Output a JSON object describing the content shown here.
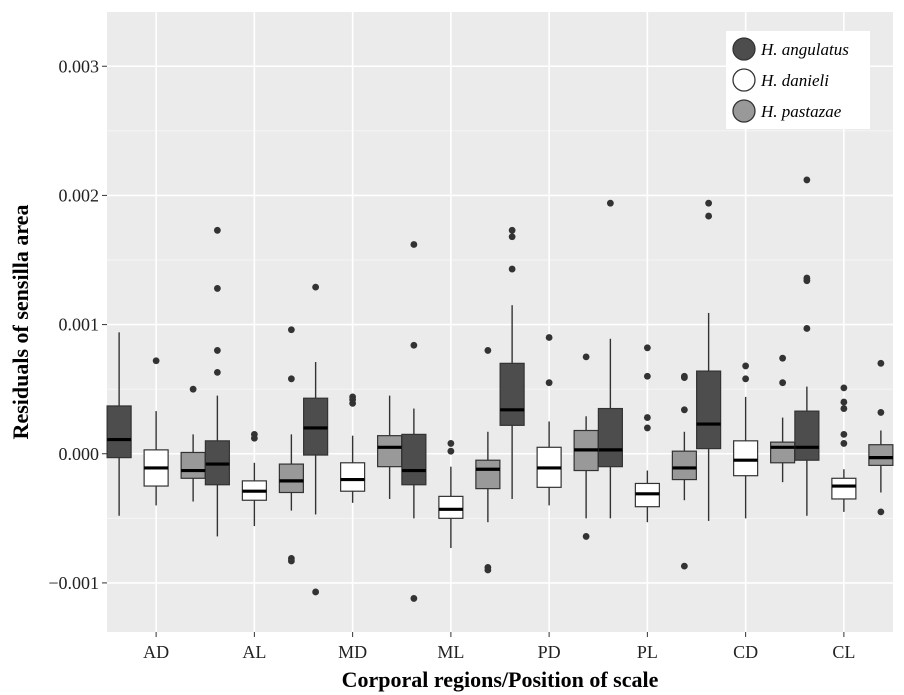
{
  "chart_data": {
    "type": "boxplot",
    "xlabel": "Corporal regions/Position of scale",
    "ylabel": "Residuals of sensilla area",
    "categories": [
      "AD",
      "AL",
      "MD",
      "ML",
      "PD",
      "PL",
      "CD",
      "CL"
    ],
    "yticks": [
      "−0.001",
      "0.000",
      "0.001",
      "0.002",
      "0.003"
    ],
    "ytick_values": [
      -0.001,
      0.0,
      0.001,
      0.002,
      0.003
    ],
    "ylim": [
      -0.00138,
      0.00342
    ],
    "grid": true,
    "legend_position": "top-right",
    "series": [
      {
        "name": "H. angulatus",
        "color": "#4d4d4d",
        "boxes": [
          {
            "whislo": -0.00048,
            "q1": -3e-05,
            "med": 0.00011,
            "q3": 0.00037,
            "whishi": 0.00094,
            "fliers": []
          },
          {
            "whislo": -0.00064,
            "q1": -0.00024,
            "med": -8e-05,
            "q3": 0.0001,
            "whishi": 0.00045,
            "fliers": [
              0.00063,
              0.0008,
              0.00128,
              0.00173
            ]
          },
          {
            "whislo": -0.00047,
            "q1": -1e-05,
            "med": 0.0002,
            "q3": 0.00043,
            "whishi": 0.00071,
            "fliers": [
              0.00129,
              -0.00107
            ]
          },
          {
            "whislo": -0.0005,
            "q1": -0.00024,
            "med": -0.00013,
            "q3": 0.00015,
            "whishi": 0.00035,
            "fliers": [
              0.00084,
              0.00162,
              -0.00112
            ]
          },
          {
            "whislo": -0.00035,
            "q1": 0.00022,
            "med": 0.00034,
            "q3": 0.0007,
            "whishi": 0.00115,
            "fliers": [
              0.00143,
              0.00168,
              0.00173
            ]
          },
          {
            "whislo": -0.0005,
            "q1": -0.0001,
            "med": 3e-05,
            "q3": 0.00035,
            "whishi": 0.00089,
            "fliers": [
              0.00194
            ]
          },
          {
            "whislo": -0.00052,
            "q1": 4e-05,
            "med": 0.00023,
            "q3": 0.00064,
            "whishi": 0.00109,
            "fliers": [
              0.00184,
              0.00194
            ]
          },
          {
            "whislo": -0.00048,
            "q1": -5e-05,
            "med": 5e-05,
            "q3": 0.00033,
            "whishi": 0.00052,
            "fliers": [
              0.00097,
              0.00134,
              0.00136,
              0.00212
            ]
          }
        ]
      },
      {
        "name": "H. danieli",
        "color": "#ffffff",
        "boxes": [
          {
            "whislo": -0.0004,
            "q1": -0.00025,
            "med": -0.00011,
            "q3": 3e-05,
            "whishi": 0.00033,
            "fliers": [
              0.00072
            ]
          },
          {
            "whislo": -0.00056,
            "q1": -0.00036,
            "med": -0.00029,
            "q3": -0.00021,
            "whishi": -7e-05,
            "fliers": [
              0.00012,
              0.00015
            ]
          },
          {
            "whislo": -0.00038,
            "q1": -0.00029,
            "med": -0.0002,
            "q3": -7e-05,
            "whishi": 0.00014,
            "fliers": [
              0.00039,
              0.00042,
              0.00044
            ]
          },
          {
            "whislo": -0.00073,
            "q1": -0.0005,
            "med": -0.00043,
            "q3": -0.00033,
            "whishi": -0.0001,
            "fliers": [
              2e-05,
              8e-05
            ]
          },
          {
            "whislo": -0.0004,
            "q1": -0.00026,
            "med": -0.00011,
            "q3": 5e-05,
            "whishi": 0.00025,
            "fliers": [
              0.00055,
              0.0009
            ]
          },
          {
            "whislo": -0.00053,
            "q1": -0.00041,
            "med": -0.00031,
            "q3": -0.00023,
            "whishi": -0.00013,
            "fliers": [
              0.0002,
              0.00028,
              0.0006,
              0.00082
            ]
          },
          {
            "whislo": -0.0005,
            "q1": -0.00017,
            "med": -5e-05,
            "q3": 0.0001,
            "whishi": 0.00044,
            "fliers": [
              0.00058,
              0.00068
            ]
          },
          {
            "whislo": -0.00045,
            "q1": -0.00035,
            "med": -0.00025,
            "q3": -0.00019,
            "whishi": -0.00012,
            "fliers": [
              8e-05,
              0.00015,
              0.00035,
              0.0004,
              0.00051
            ]
          }
        ]
      },
      {
        "name": "H. pastazae",
        "color": "#999999",
        "boxes": [
          {
            "whislo": -0.00037,
            "q1": -0.00019,
            "med": -0.00013,
            "q3": 1e-05,
            "whishi": 0.00015,
            "fliers": [
              0.0005
            ]
          },
          {
            "whislo": -0.00044,
            "q1": -0.0003,
            "med": -0.00021,
            "q3": -8e-05,
            "whishi": 0.00015,
            "fliers": [
              0.00058,
              0.00096,
              -0.00081,
              -0.00083
            ]
          },
          {
            "whislo": -0.00035,
            "q1": -0.0001,
            "med": 5e-05,
            "q3": 0.00014,
            "whishi": 0.00045,
            "fliers": []
          },
          {
            "whislo": -0.00053,
            "q1": -0.00027,
            "med": -0.00012,
            "q3": -5e-05,
            "whishi": 0.00017,
            "fliers": [
              0.0008,
              -0.00088,
              -0.0009
            ]
          },
          {
            "whislo": -0.0005,
            "q1": -0.00013,
            "med": 3e-05,
            "q3": 0.00018,
            "whishi": 0.00029,
            "fliers": [
              0.00075,
              -0.00064
            ]
          },
          {
            "whislo": -0.00036,
            "q1": -0.0002,
            "med": -0.00011,
            "q3": 2e-05,
            "whishi": 0.00017,
            "fliers": [
              0.00034,
              0.00059,
              0.0006,
              -0.00087
            ]
          },
          {
            "whislo": -0.00022,
            "q1": -7e-05,
            "med": 5e-05,
            "q3": 9e-05,
            "whishi": 0.00028,
            "fliers": [
              0.00055,
              0.00074
            ]
          },
          {
            "whislo": -0.0003,
            "q1": -9e-05,
            "med": -3e-05,
            "q3": 7e-05,
            "whishi": 0.00018,
            "fliers": [
              0.00032,
              0.0007,
              -0.00045
            ]
          }
        ]
      }
    ]
  }
}
